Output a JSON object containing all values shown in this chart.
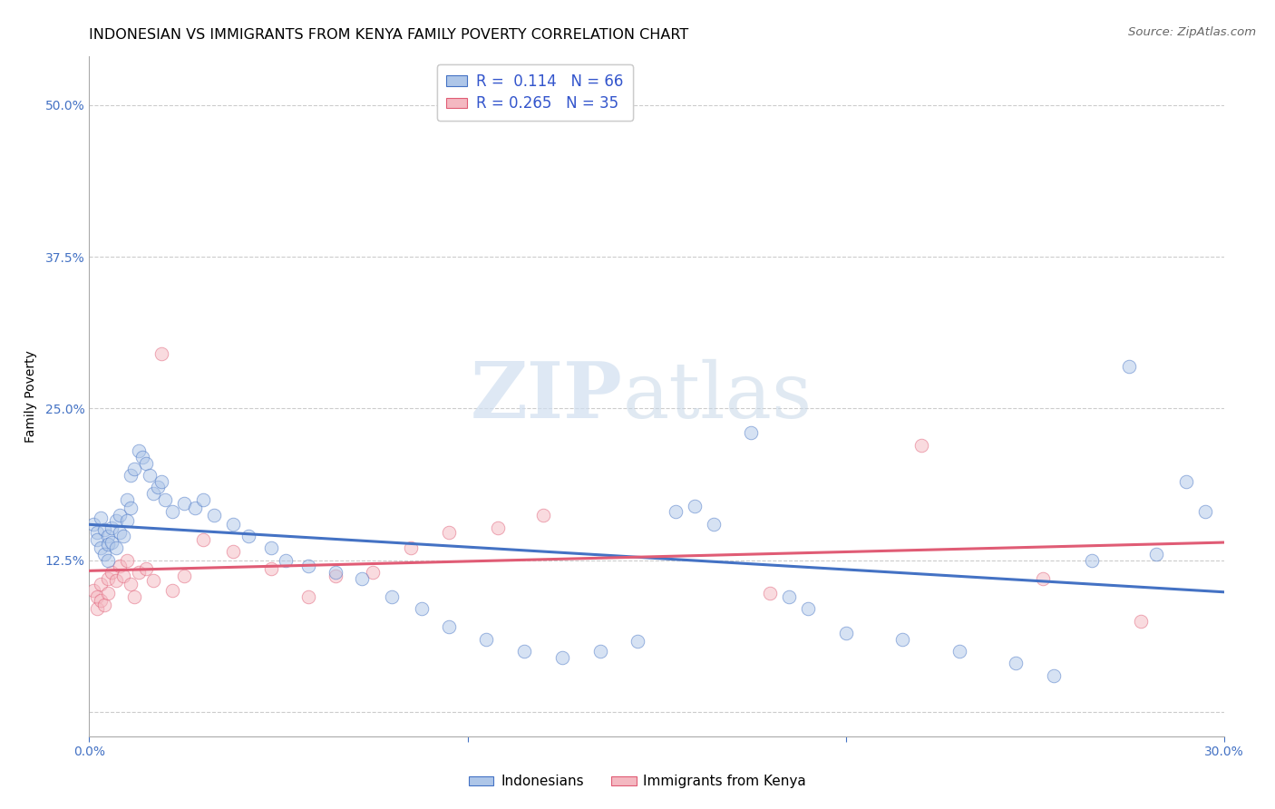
{
  "title": "INDONESIAN VS IMMIGRANTS FROM KENYA FAMILY POVERTY CORRELATION CHART",
  "source": "Source: ZipAtlas.com",
  "ylabel": "Family Poverty",
  "yticks": [
    0.0,
    0.125,
    0.25,
    0.375,
    0.5
  ],
  "ytick_labels": [
    "",
    "12.5%",
    "25.0%",
    "37.5%",
    "50.0%"
  ],
  "xlim": [
    0.0,
    0.3
  ],
  "ylim": [
    -0.02,
    0.54
  ],
  "legend_entries": [
    {
      "label": "Indonesians",
      "color": "#aec6e8",
      "edge": "#4472c4",
      "R": "0.114",
      "N": "66"
    },
    {
      "label": "Immigrants from Kenya",
      "color": "#f4b8c1",
      "edge": "#e05c75",
      "R": "0.265",
      "N": "35"
    }
  ],
  "indo_x": [
    0.001,
    0.002,
    0.002,
    0.003,
    0.003,
    0.004,
    0.004,
    0.005,
    0.005,
    0.005,
    0.006,
    0.006,
    0.007,
    0.007,
    0.008,
    0.008,
    0.009,
    0.01,
    0.01,
    0.011,
    0.011,
    0.012,
    0.013,
    0.014,
    0.015,
    0.016,
    0.017,
    0.018,
    0.019,
    0.02,
    0.022,
    0.025,
    0.028,
    0.03,
    0.033,
    0.038,
    0.042,
    0.048,
    0.052,
    0.058,
    0.065,
    0.072,
    0.08,
    0.088,
    0.095,
    0.105,
    0.115,
    0.125,
    0.135,
    0.145,
    0.155,
    0.16,
    0.165,
    0.175,
    0.185,
    0.19,
    0.2,
    0.215,
    0.23,
    0.245,
    0.255,
    0.265,
    0.275,
    0.282,
    0.29,
    0.295
  ],
  "indo_y": [
    0.155,
    0.148,
    0.142,
    0.135,
    0.16,
    0.15,
    0.13,
    0.145,
    0.138,
    0.125,
    0.152,
    0.14,
    0.158,
    0.135,
    0.148,
    0.162,
    0.145,
    0.175,
    0.158,
    0.168,
    0.195,
    0.2,
    0.215,
    0.21,
    0.205,
    0.195,
    0.18,
    0.185,
    0.19,
    0.175,
    0.165,
    0.172,
    0.168,
    0.175,
    0.162,
    0.155,
    0.145,
    0.135,
    0.125,
    0.12,
    0.115,
    0.11,
    0.095,
    0.085,
    0.07,
    0.06,
    0.05,
    0.045,
    0.05,
    0.058,
    0.165,
    0.17,
    0.155,
    0.23,
    0.095,
    0.085,
    0.065,
    0.06,
    0.05,
    0.04,
    0.03,
    0.125,
    0.285,
    0.13,
    0.19,
    0.165
  ],
  "kenya_x": [
    0.001,
    0.002,
    0.002,
    0.003,
    0.003,
    0.004,
    0.005,
    0.005,
    0.006,
    0.007,
    0.008,
    0.009,
    0.01,
    0.011,
    0.012,
    0.013,
    0.015,
    0.017,
    0.019,
    0.022,
    0.025,
    0.03,
    0.038,
    0.048,
    0.058,
    0.065,
    0.075,
    0.085,
    0.095,
    0.108,
    0.12,
    0.18,
    0.22,
    0.252,
    0.278
  ],
  "kenya_y": [
    0.1,
    0.095,
    0.085,
    0.092,
    0.105,
    0.088,
    0.11,
    0.098,
    0.115,
    0.108,
    0.12,
    0.112,
    0.125,
    0.105,
    0.095,
    0.115,
    0.118,
    0.108,
    0.295,
    0.1,
    0.112,
    0.142,
    0.132,
    0.118,
    0.095,
    0.112,
    0.115,
    0.135,
    0.148,
    0.152,
    0.162,
    0.098,
    0.22,
    0.11,
    0.075
  ],
  "blue_line_color": "#4472c4",
  "pink_line_color": "#e05c75",
  "dot_blue_color": "#aec6e8",
  "dot_pink_color": "#f4b8c1",
  "grid_color": "#cccccc",
  "background_color": "#ffffff",
  "watermark_zip": "ZIP",
  "watermark_atlas": "atlas",
  "title_fontsize": 11.5,
  "source_fontsize": 9.5,
  "axis_label_fontsize": 10,
  "tick_label_fontsize": 10,
  "legend_fontsize": 12,
  "dot_size": 110,
  "dot_alpha": 0.5,
  "line_width": 2.2
}
